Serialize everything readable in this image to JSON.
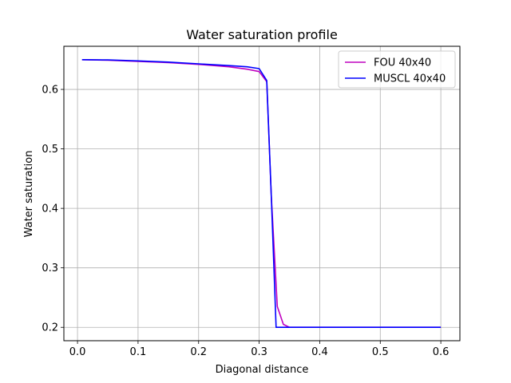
{
  "chart_data": {
    "type": "line",
    "title": "Water saturation profile",
    "xlabel": "Diagonal distance",
    "ylabel": "Water saturation",
    "xlim": [
      -0.0225,
      0.6315
    ],
    "ylim": [
      0.1775,
      0.6725
    ],
    "xticks": [
      0.0,
      0.1,
      0.2,
      0.3,
      0.4,
      0.5,
      0.6
    ],
    "xtick_labels": [
      "0.0",
      "0.1",
      "0.2",
      "0.3",
      "0.4",
      "0.5",
      "0.6"
    ],
    "yticks": [
      0.2,
      0.3,
      0.4,
      0.5,
      0.6
    ],
    "ytick_labels": [
      "0.2",
      "0.3",
      "0.4",
      "0.5",
      "0.6"
    ],
    "grid": true,
    "legend_position": "top-right",
    "series": [
      {
        "name": "FOU 40x40",
        "color": "#bf00bf",
        "x": [
          0.0075,
          0.05,
          0.1,
          0.15,
          0.2,
          0.25,
          0.28,
          0.3,
          0.3125,
          0.32,
          0.33,
          0.34,
          0.35,
          0.4,
          0.5,
          0.6
        ],
        "y": [
          0.65,
          0.649,
          0.647,
          0.645,
          0.642,
          0.638,
          0.634,
          0.63,
          0.613,
          0.42,
          0.235,
          0.205,
          0.2,
          0.2,
          0.2,
          0.2
        ]
      },
      {
        "name": "MUSCL 40x40",
        "color": "#0000ff",
        "x": [
          0.0075,
          0.05,
          0.1,
          0.15,
          0.2,
          0.25,
          0.28,
          0.3,
          0.3125,
          0.32,
          0.328,
          0.34,
          0.4,
          0.5,
          0.6
        ],
        "y": [
          0.65,
          0.6495,
          0.648,
          0.646,
          0.643,
          0.64,
          0.638,
          0.635,
          0.615,
          0.42,
          0.2,
          0.2,
          0.2,
          0.2,
          0.2
        ]
      }
    ]
  }
}
